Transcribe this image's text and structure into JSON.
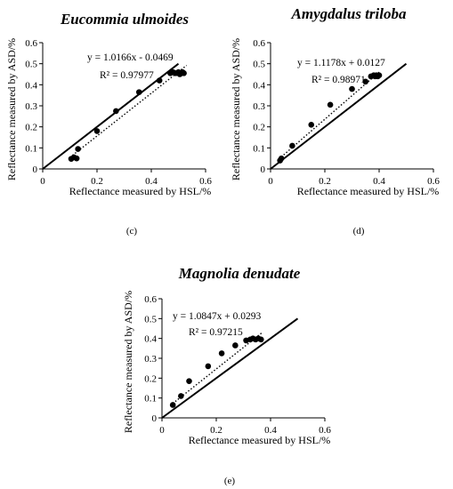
{
  "chart_data": [
    {
      "type": "scatter",
      "panel_label": "(c)",
      "title": "Eucommia ulmoides",
      "xlabel": "Reflectance measured by HSL/%",
      "ylabel": "Reflectance measured by ASD/%",
      "xlim": [
        0,
        0.6
      ],
      "ylim": [
        0,
        0.6
      ],
      "xticks": [
        "0",
        "0.2",
        "0.4",
        "0.6"
      ],
      "yticks": [
        "0",
        "0.1",
        "0.2",
        "0.3",
        "0.4",
        "0.5",
        "0.6"
      ],
      "grid": false,
      "equation": "y = 1.0166x - 0.0469",
      "r_squared": "R² = 0.97977",
      "points": [
        [
          0.105,
          0.048
        ],
        [
          0.115,
          0.055
        ],
        [
          0.125,
          0.05
        ],
        [
          0.13,
          0.095
        ],
        [
          0.2,
          0.18
        ],
        [
          0.27,
          0.275
        ],
        [
          0.355,
          0.365
        ],
        [
          0.43,
          0.42
        ],
        [
          0.47,
          0.455
        ],
        [
          0.48,
          0.46
        ],
        [
          0.49,
          0.455
        ],
        [
          0.5,
          0.46
        ],
        [
          0.505,
          0.45
        ],
        [
          0.51,
          0.455
        ],
        [
          0.515,
          0.46
        ],
        [
          0.52,
          0.455
        ]
      ],
      "trendline": {
        "slope": 1.0166,
        "intercept": -0.0469,
        "x_range": [
          0.1,
          0.53
        ]
      },
      "reference_line": {
        "x_range": [
          0,
          0.5
        ]
      }
    },
    {
      "type": "scatter",
      "panel_label": "(d)",
      "title": "Amygdalus triloba",
      "xlabel": "Reflectance measured by HSL/%",
      "ylabel": "Reflectance measured by ASD/%",
      "xlim": [
        0,
        0.6
      ],
      "ylim": [
        0,
        0.6
      ],
      "xticks": [
        "0",
        "0.2",
        "0.4",
        "0.6"
      ],
      "yticks": [
        "0",
        "0.1",
        "0.2",
        "0.3",
        "0.4",
        "0.5",
        "0.6"
      ],
      "grid": false,
      "equation": "y = 1.1178x + 0.0127",
      "r_squared": "R² = 0.98971",
      "points": [
        [
          0.035,
          0.04
        ],
        [
          0.04,
          0.05
        ],
        [
          0.08,
          0.11
        ],
        [
          0.15,
          0.21
        ],
        [
          0.22,
          0.305
        ],
        [
          0.3,
          0.38
        ],
        [
          0.35,
          0.415
        ],
        [
          0.37,
          0.44
        ],
        [
          0.38,
          0.445
        ],
        [
          0.385,
          0.44
        ],
        [
          0.39,
          0.445
        ],
        [
          0.395,
          0.44
        ],
        [
          0.4,
          0.445
        ]
      ],
      "trendline": {
        "slope": 1.1178,
        "intercept": 0.0127,
        "x_range": [
          0.03,
          0.4
        ]
      },
      "reference_line": {
        "x_range": [
          0,
          0.5
        ]
      }
    },
    {
      "type": "scatter",
      "panel_label": "(e)",
      "title": "Magnolia denudate",
      "xlabel": "Reflectance measured by HSL/%",
      "ylabel": "Reflectance measured by ASD/%",
      "xlim": [
        0,
        0.6
      ],
      "ylim": [
        0,
        0.6
      ],
      "xticks": [
        "0",
        "0.2",
        "0.4",
        "0.6"
      ],
      "yticks": [
        "0",
        "0.1",
        "0.2",
        "0.3",
        "0.4",
        "0.5",
        "0.6"
      ],
      "grid": false,
      "equation": "y = 1.0847x + 0.0293",
      "r_squared": "R² = 0.97215",
      "points": [
        [
          0.04,
          0.065
        ],
        [
          0.07,
          0.11
        ],
        [
          0.1,
          0.185
        ],
        [
          0.17,
          0.26
        ],
        [
          0.22,
          0.325
        ],
        [
          0.27,
          0.365
        ],
        [
          0.31,
          0.39
        ],
        [
          0.325,
          0.395
        ],
        [
          0.335,
          0.4
        ],
        [
          0.345,
          0.395
        ],
        [
          0.355,
          0.4
        ],
        [
          0.365,
          0.395
        ]
      ],
      "trendline": {
        "slope": 1.0847,
        "intercept": 0.0293,
        "x_range": [
          0.03,
          0.37
        ]
      },
      "reference_line": {
        "x_range": [
          0,
          0.5
        ]
      }
    }
  ]
}
